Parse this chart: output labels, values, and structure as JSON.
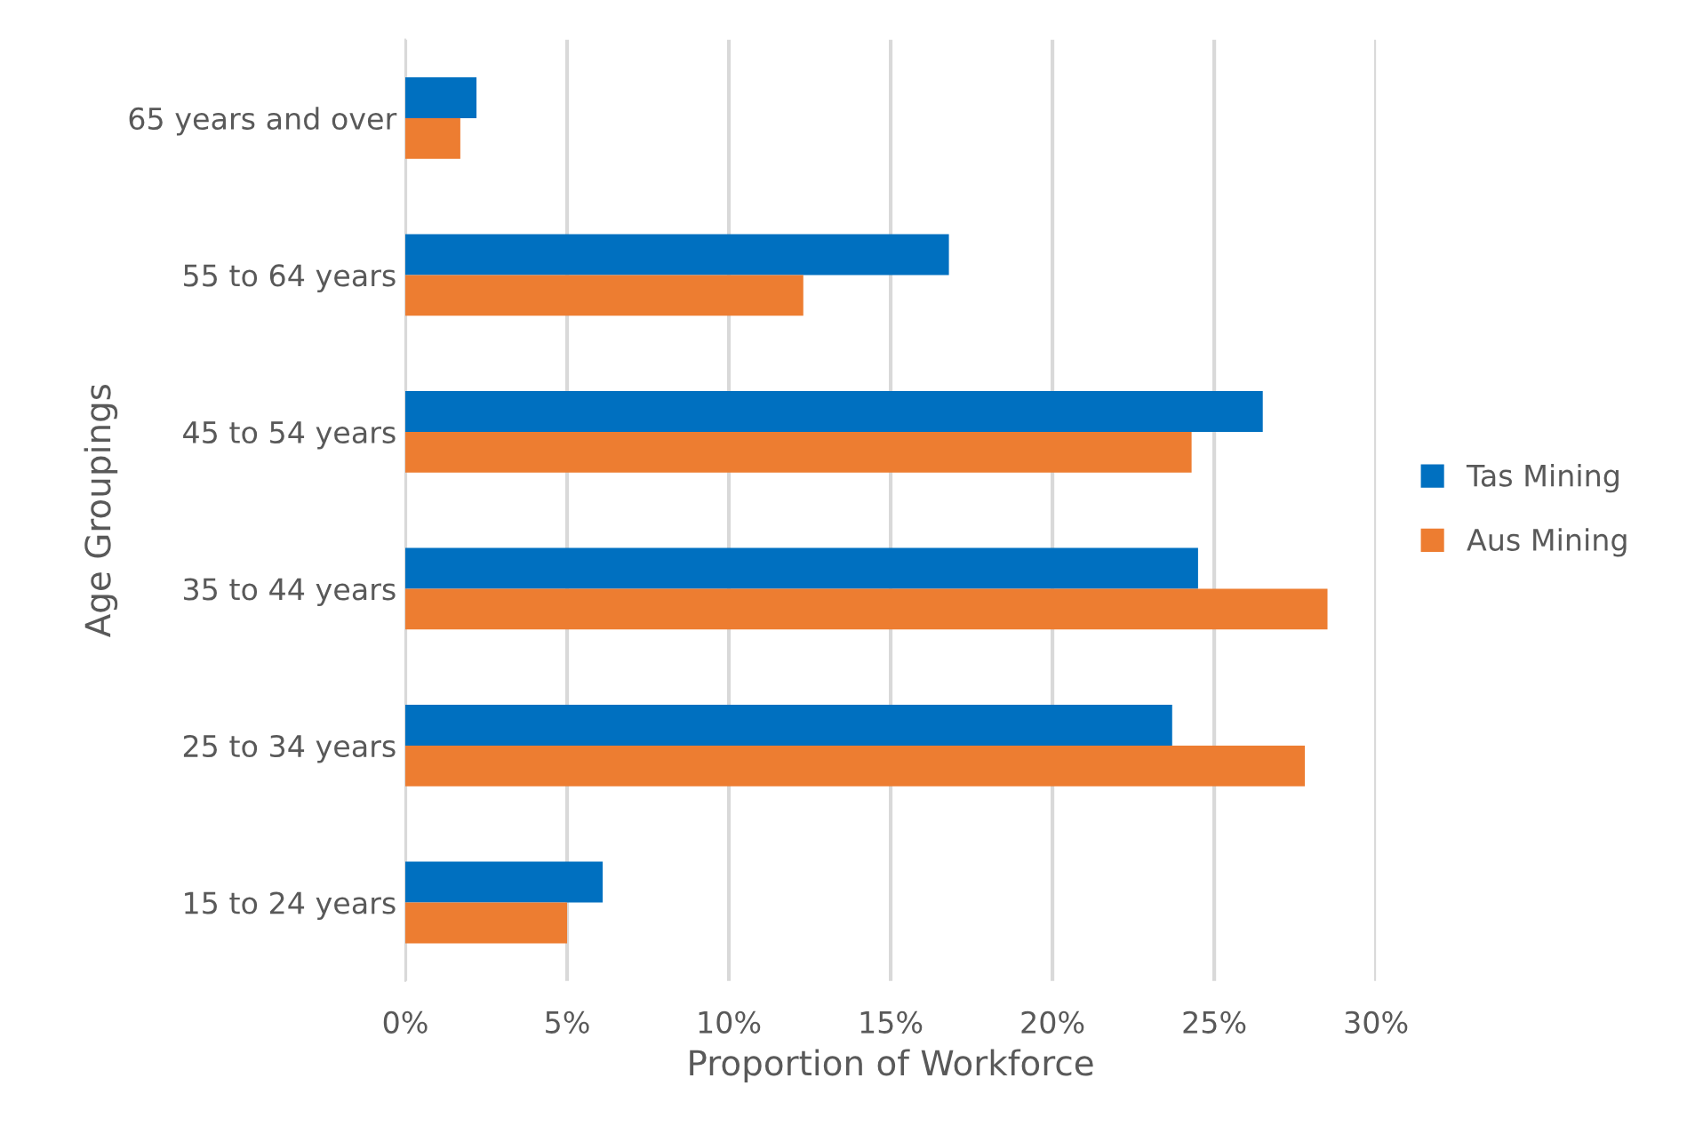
{
  "chart_data": {
    "type": "bar",
    "orientation": "horizontal",
    "xlabel": "Proportion of Workforce",
    "ylabel": "Age Groupings",
    "categories": [
      "65 years and over",
      "55 to 64 years",
      "45 to 54 years",
      "35 to 44 years",
      "25 to 34 years",
      "15 to 24 years"
    ],
    "series": [
      {
        "name": "Tas Mining",
        "color": "#0070c0",
        "values": [
          2.2,
          16.8,
          26.5,
          24.5,
          23.7,
          6.1
        ]
      },
      {
        "name": "Aus Mining",
        "color": "#ed7d31",
        "values": [
          1.7,
          12.3,
          24.3,
          28.5,
          27.8,
          5.0
        ]
      }
    ],
    "xlim": [
      0,
      30
    ],
    "xticks": [
      {
        "value": 0,
        "label": "0%"
      },
      {
        "value": 5,
        "label": "5%"
      },
      {
        "value": 10,
        "label": "10%"
      },
      {
        "value": 15,
        "label": "15%"
      },
      {
        "value": 20,
        "label": "20%"
      },
      {
        "value": 25,
        "label": "25%"
      },
      {
        "value": 30,
        "label": "30%"
      }
    ],
    "grid": "x",
    "legend": "right"
  }
}
